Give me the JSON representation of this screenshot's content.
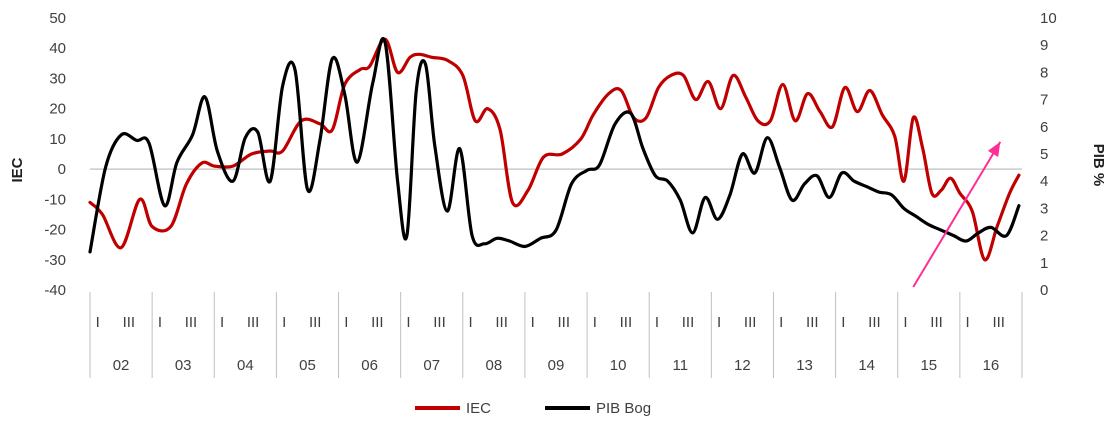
{
  "chart_data": {
    "type": "line",
    "ylabel": "IEC",
    "y2label": "PIB %",
    "ylim": [
      -40,
      50
    ],
    "yticks": [
      -40,
      -30,
      -20,
      -10,
      0,
      10,
      20,
      30,
      40,
      50
    ],
    "y2lim": [
      0,
      10
    ],
    "y2ticks": [
      0,
      1,
      2,
      3,
      4,
      5,
      6,
      7,
      8,
      9,
      10
    ],
    "years": [
      "02",
      "03",
      "04",
      "05",
      "06",
      "07",
      "08",
      "09",
      "10",
      "11",
      "12",
      "13",
      "14",
      "15",
      "16"
    ],
    "quarter_marks": [
      "I",
      "III"
    ],
    "x_range": [
      2002.0,
      2017.0
    ],
    "grid": false,
    "legend_position": "bottom",
    "colors": {
      "IEC": "#c00000",
      "PIB Bog": "#000000",
      "arrow": "#ff2d95",
      "axis": "#bfbfbf"
    },
    "series": [
      {
        "name": "IEC",
        "axis": "left",
        "x": [
          2002.0,
          2002.2,
          2002.5,
          2002.8,
          2003.0,
          2003.3,
          2003.55,
          2003.8,
          2004.0,
          2004.3,
          2004.6,
          2004.9,
          2005.1,
          2005.4,
          2005.7,
          2005.9,
          2006.1,
          2006.35,
          2006.5,
          2006.75,
          2006.95,
          2007.15,
          2007.3,
          2007.5,
          2007.75,
          2008.0,
          2008.2,
          2008.4,
          2008.6,
          2008.8,
          2009.05,
          2009.3,
          2009.6,
          2009.9,
          2010.1,
          2010.35,
          2010.55,
          2010.75,
          2010.95,
          2011.15,
          2011.35,
          2011.55,
          2011.75,
          2011.95,
          2012.15,
          2012.35,
          2012.55,
          2012.75,
          2012.95,
          2013.15,
          2013.35,
          2013.55,
          2013.75,
          2013.95,
          2014.15,
          2014.35,
          2014.55,
          2014.75,
          2014.95,
          2015.1,
          2015.25,
          2015.4,
          2015.55,
          2015.7,
          2015.85,
          2016.0,
          2016.2,
          2016.4,
          2016.6,
          2016.8,
          2016.95
        ],
        "values": [
          -11,
          -15,
          -26,
          -10,
          -19,
          -19,
          -5,
          2,
          1,
          1,
          5,
          6,
          6,
          16,
          15,
          13,
          28,
          33,
          34,
          43,
          32,
          37,
          38,
          37,
          36,
          31,
          16,
          20,
          13,
          -11,
          -7,
          4,
          5,
          10,
          18,
          25,
          26,
          17,
          17,
          27,
          31,
          31,
          23,
          29,
          20,
          31,
          24,
          16,
          16,
          28,
          16,
          25,
          19,
          14,
          27,
          19,
          26,
          18,
          11,
          -4,
          17,
          7,
          -8,
          -7,
          -3,
          -8,
          -14,
          -30,
          -19,
          -8,
          -2
        ]
      },
      {
        "name": "PIB Bog",
        "axis": "right",
        "x": [
          2002.0,
          2002.25,
          2002.5,
          2002.75,
          2002.95,
          2003.2,
          2003.4,
          2003.65,
          2003.85,
          2004.05,
          2004.3,
          2004.5,
          2004.7,
          2004.9,
          2005.1,
          2005.3,
          2005.5,
          2005.7,
          2005.9,
          2006.1,
          2006.3,
          2006.55,
          2006.75,
          2006.95,
          2007.1,
          2007.25,
          2007.4,
          2007.55,
          2007.75,
          2007.95,
          2008.15,
          2008.35,
          2008.55,
          2008.75,
          2009.0,
          2009.25,
          2009.5,
          2009.75,
          2010.0,
          2010.2,
          2010.45,
          2010.7,
          2010.9,
          2011.1,
          2011.3,
          2011.5,
          2011.7,
          2011.9,
          2012.1,
          2012.3,
          2012.5,
          2012.7,
          2012.9,
          2013.1,
          2013.3,
          2013.5,
          2013.7,
          2013.9,
          2014.1,
          2014.3,
          2014.5,
          2014.7,
          2014.9,
          2015.1,
          2015.3,
          2015.5,
          2015.7,
          2015.9,
          2016.1,
          2016.3,
          2016.5,
          2016.75,
          2016.95
        ],
        "values": [
          1.4,
          4.5,
          5.7,
          5.5,
          5.4,
          3.1,
          4.7,
          5.7,
          7.1,
          5.1,
          4.0,
          5.6,
          5.8,
          4.0,
          7.5,
          8.1,
          3.7,
          5.5,
          8.5,
          7.2,
          4.7,
          7.6,
          9.1,
          4.0,
          2.0,
          7.3,
          8.3,
          5.3,
          2.9,
          5.2,
          2.0,
          1.7,
          1.9,
          1.8,
          1.6,
          1.9,
          2.2,
          3.9,
          4.4,
          4.6,
          6.1,
          6.5,
          5.2,
          4.2,
          4.0,
          3.3,
          2.1,
          3.4,
          2.6,
          3.5,
          5.0,
          4.3,
          5.6,
          4.5,
          3.3,
          3.9,
          4.2,
          3.4,
          4.3,
          4.0,
          3.8,
          3.6,
          3.5,
          3.0,
          2.7,
          2.4,
          2.2,
          2.0,
          1.8,
          2.1,
          2.3,
          2.0,
          3.1
        ]
      }
    ]
  },
  "legend": {
    "items": [
      {
        "label": "IEC",
        "color": "#c00000"
      },
      {
        "label": "PIB Bog",
        "color": "#000000"
      }
    ]
  }
}
